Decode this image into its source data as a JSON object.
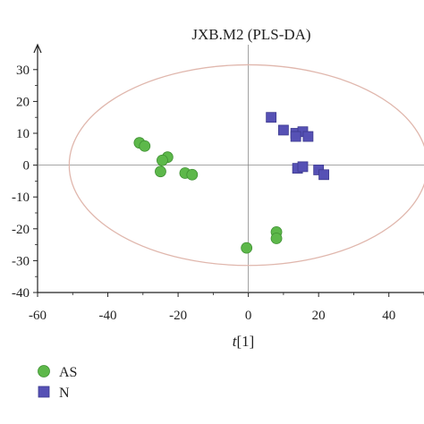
{
  "chart_data": {
    "type": "scatter",
    "title": "JXB.M2 (PLS-DA)",
    "xlabel_italic": "t",
    "xlabel_rest": "[1]",
    "ylabel": "",
    "xlim": [
      -60,
      50
    ],
    "ylim": [
      -40,
      35
    ],
    "xticks": [
      -60,
      -40,
      -20,
      0,
      20,
      40
    ],
    "yticks": [
      -40,
      -30,
      -20,
      -10,
      0,
      10,
      20,
      30
    ],
    "grid": false,
    "legend_position": "bottom-left",
    "ellipse": {
      "center": [
        0,
        0
      ],
      "rx": 51,
      "ry": 31.5,
      "color": "#e0b7ad"
    },
    "series": [
      {
        "name": "AS",
        "marker": "circle",
        "color": "#5db84a",
        "points": [
          [
            -31,
            7
          ],
          [
            -29.5,
            6
          ],
          [
            -23,
            2.5
          ],
          [
            -24.5,
            1.5
          ],
          [
            -25,
            -2
          ],
          [
            -18,
            -2.5
          ],
          [
            -16,
            -3
          ],
          [
            8,
            -21
          ],
          [
            8,
            -23
          ],
          [
            -0.5,
            -26
          ]
        ]
      },
      {
        "name": "N",
        "marker": "square",
        "color": "#5651b5",
        "points": [
          [
            6.5,
            15
          ],
          [
            10,
            11
          ],
          [
            13.5,
            10
          ],
          [
            15.5,
            10.5
          ],
          [
            13.5,
            9
          ],
          [
            17,
            9
          ],
          [
            14,
            -1
          ],
          [
            15.5,
            -0.5
          ],
          [
            20,
            -1.5
          ],
          [
            21.5,
            -3
          ]
        ]
      }
    ]
  }
}
